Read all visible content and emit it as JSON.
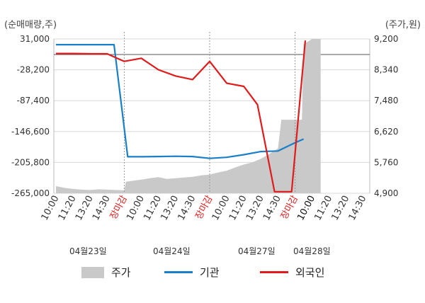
{
  "unit_left": "(순매매량,주)",
  "unit_right": "(주가,원)",
  "left_ticks": [
    "31,000",
    "-28,200",
    "-87,400",
    "-146,600",
    "-205,800",
    "-265,000"
  ],
  "right_ticks": [
    "9,200",
    "8,340",
    "7,480",
    "6,620",
    "5,760",
    "4,900"
  ],
  "x_ticks": [
    {
      "label": "10:00",
      "style": "normal"
    },
    {
      "label": "11:20",
      "style": "normal"
    },
    {
      "label": "13:20",
      "style": "normal"
    },
    {
      "label": "14:30",
      "style": "normal"
    },
    {
      "label": "장마감",
      "style": "close"
    },
    {
      "label": "10:00",
      "style": "normal"
    },
    {
      "label": "11:20",
      "style": "normal"
    },
    {
      "label": "13:20",
      "style": "normal"
    },
    {
      "label": "14:30",
      "style": "normal"
    },
    {
      "label": "장마감",
      "style": "close"
    },
    {
      "label": "10:00",
      "style": "normal"
    },
    {
      "label": "11:20",
      "style": "normal"
    },
    {
      "label": "13:20",
      "style": "normal"
    },
    {
      "label": "14:30",
      "style": "normal"
    },
    {
      "label": "장마감",
      "style": "close"
    },
    {
      "label": "10:00",
      "style": "dark"
    },
    {
      "label": "11:20",
      "style": "normal"
    },
    {
      "label": "13:20",
      "style": "normal"
    },
    {
      "label": "14:30",
      "style": "normal"
    }
  ],
  "dates": [
    "04월23일",
    "04월24일",
    "04월27일",
    "04월28일"
  ],
  "legend": [
    {
      "label": "주가",
      "kind": "area",
      "color": "#c9c9c9"
    },
    {
      "label": "기관",
      "kind": "line",
      "color": "#1a7fc8"
    },
    {
      "label": "외국인",
      "kind": "line",
      "color": "#e01b1b"
    }
  ],
  "chart_data": {
    "type": "line",
    "xlabel": "",
    "ylabel_left": "(순매매량,주)",
    "ylabel_right": "(주가,원)",
    "ylim_left": [
      -265000,
      31000
    ],
    "ylim_right": [
      4900,
      9200
    ],
    "x_slots": 19,
    "grid": true,
    "colors": {
      "price": "#c9c9c9",
      "institution": "#1a7fc8",
      "foreign": "#e01b1b",
      "grid": "#d8d8d8",
      "separator": "#999999"
    },
    "series": [
      {
        "name": "기관",
        "axis": "left",
        "points": [
          [
            0,
            20000
          ],
          [
            1,
            20000
          ],
          [
            2,
            20000
          ],
          [
            3,
            20000
          ],
          [
            3.4,
            20000
          ],
          [
            4.2,
            -195000
          ],
          [
            5,
            -195000
          ],
          [
            6,
            -194500
          ],
          [
            7,
            -194000
          ],
          [
            8,
            -194500
          ],
          [
            9,
            -198000
          ],
          [
            10,
            -196000
          ],
          [
            11,
            -191000
          ],
          [
            12,
            -185000
          ],
          [
            13,
            -184000
          ],
          [
            14,
            -168000
          ],
          [
            14.5,
            -161000
          ]
        ]
      },
      {
        "name": "외국인",
        "axis": "left",
        "points": [
          [
            0,
            3000
          ],
          [
            1,
            3000
          ],
          [
            2,
            2500
          ],
          [
            3,
            2500
          ],
          [
            4,
            -12000
          ],
          [
            5,
            -6000
          ],
          [
            6,
            -28000
          ],
          [
            7,
            -40000
          ],
          [
            8,
            -47000
          ],
          [
            9,
            -12000
          ],
          [
            10,
            -54000
          ],
          [
            11,
            -60000
          ],
          [
            11.8,
            -95000
          ],
          [
            12.8,
            -262000
          ],
          [
            13.8,
            -262000
          ],
          [
            14.6,
            28000
          ]
        ]
      },
      {
        "name": "주가",
        "axis": "right",
        "points": [
          [
            0,
            5100
          ],
          [
            0.5,
            5050
          ],
          [
            1,
            5020
          ],
          [
            1.5,
            5000
          ],
          [
            2,
            4990
          ],
          [
            2.5,
            5010
          ],
          [
            3,
            5000
          ],
          [
            3.5,
            4990
          ],
          [
            4,
            4980
          ],
          [
            4.1,
            5220
          ],
          [
            5,
            5280
          ],
          [
            5.5,
            5320
          ],
          [
            6,
            5350
          ],
          [
            6.5,
            5300
          ],
          [
            7,
            5320
          ],
          [
            7.5,
            5340
          ],
          [
            8,
            5360
          ],
          [
            8.5,
            5400
          ],
          [
            9,
            5420
          ],
          [
            9.5,
            5480
          ],
          [
            10,
            5530
          ],
          [
            10.5,
            5620
          ],
          [
            11,
            5700
          ],
          [
            11.5,
            5760
          ],
          [
            12,
            5860
          ],
          [
            12.5,
            6000
          ],
          [
            13,
            6150
          ],
          [
            13.2,
            6950
          ],
          [
            14,
            6950
          ],
          [
            14.4,
            6950
          ],
          [
            14.5,
            9050
          ],
          [
            15,
            9200
          ],
          [
            15.5,
            9200
          ]
        ]
      }
    ]
  }
}
